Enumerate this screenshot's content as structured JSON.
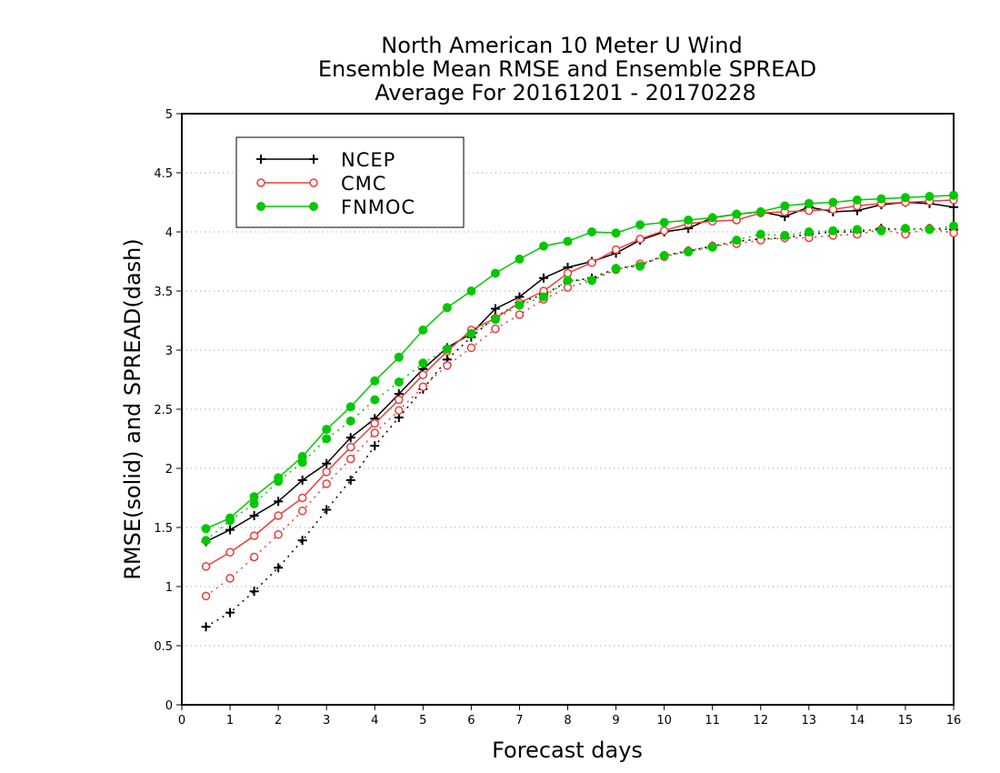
{
  "chart_data": {
    "type": "line",
    "title_lines": [
      "North American 10 Meter U Wind",
      "Ensemble Mean RMSE and Ensemble SPREAD",
      "Average For 20161201 - 20170228"
    ],
    "xlabel": "Forecast days",
    "ylabel": "RMSE(solid) and SPREAD(dash)",
    "xlim": [
      0,
      16
    ],
    "ylim": [
      0,
      5
    ],
    "x_ticks": [
      0,
      1,
      2,
      3,
      4,
      5,
      6,
      7,
      8,
      9,
      10,
      11,
      12,
      13,
      14,
      15,
      16
    ],
    "y_ticks": [
      0,
      0.5,
      1,
      1.5,
      2,
      2.5,
      3,
      3.5,
      4,
      4.5,
      5
    ],
    "grid": "horizontal dotted",
    "legend_position": "top-left",
    "x": [
      0.5,
      1,
      1.5,
      2,
      2.5,
      3,
      3.5,
      4,
      4.5,
      5,
      5.5,
      6,
      6.5,
      7,
      7.5,
      8,
      8.5,
      9,
      9.5,
      10,
      10.5,
      11,
      11.5,
      12,
      12.5,
      13,
      13.5,
      14,
      14.5,
      15,
      15.5,
      16
    ],
    "series": [
      {
        "name": "NCEP",
        "color": "#000000",
        "marker": "plus",
        "rmse": [
          1.38,
          1.48,
          1.6,
          1.72,
          1.9,
          2.04,
          2.26,
          2.42,
          2.63,
          2.84,
          3.02,
          3.14,
          3.35,
          3.45,
          3.61,
          3.7,
          3.75,
          3.82,
          3.93,
          4.0,
          4.03,
          4.12,
          4.15,
          4.17,
          4.13,
          4.21,
          4.17,
          4.18,
          4.23,
          4.25,
          4.24,
          4.21
        ],
        "spread": [
          0.66,
          0.78,
          0.96,
          1.16,
          1.39,
          1.65,
          1.9,
          2.19,
          2.43,
          2.67,
          2.92,
          3.11,
          3.28,
          3.4,
          3.47,
          3.58,
          3.61,
          3.69,
          3.72,
          3.8,
          3.84,
          3.88,
          3.92,
          3.94,
          3.95,
          3.98,
          4.0,
          4.0,
          4.03,
          4.02,
          4.03,
          4.02
        ]
      },
      {
        "name": "CMC",
        "color": "#ee3b3b",
        "marker": "open-circle",
        "rmse": [
          1.17,
          1.29,
          1.43,
          1.6,
          1.75,
          1.97,
          2.18,
          2.38,
          2.58,
          2.79,
          2.99,
          3.17,
          3.27,
          3.4,
          3.5,
          3.65,
          3.74,
          3.85,
          3.94,
          4.01,
          4.07,
          4.09,
          4.1,
          4.16,
          4.17,
          4.18,
          4.19,
          4.22,
          4.24,
          4.25,
          4.26,
          4.27
        ],
        "spread": [
          0.92,
          1.07,
          1.25,
          1.44,
          1.64,
          1.87,
          2.08,
          2.3,
          2.49,
          2.69,
          2.87,
          3.02,
          3.18,
          3.3,
          3.43,
          3.53,
          3.59,
          3.68,
          3.73,
          3.79,
          3.84,
          3.88,
          3.9,
          3.93,
          3.95,
          3.95,
          3.97,
          3.98,
          4.02,
          3.98,
          4.03,
          3.99
        ]
      },
      {
        "name": "FNMOC",
        "color": "#00c800",
        "marker": "filled-circle",
        "rmse": [
          1.49,
          1.58,
          1.76,
          1.92,
          2.1,
          2.33,
          2.52,
          2.74,
          2.94,
          3.17,
          3.36,
          3.5,
          3.65,
          3.77,
          3.88,
          3.92,
          4.0,
          3.99,
          4.06,
          4.08,
          4.1,
          4.12,
          4.15,
          4.17,
          4.22,
          4.24,
          4.25,
          4.27,
          4.28,
          4.29,
          4.3,
          4.31
        ],
        "spread": [
          1.39,
          1.56,
          1.7,
          1.89,
          2.05,
          2.25,
          2.4,
          2.58,
          2.73,
          2.89,
          3.01,
          3.14,
          3.26,
          3.38,
          3.45,
          3.59,
          3.59,
          3.69,
          3.71,
          3.8,
          3.83,
          3.87,
          3.93,
          3.98,
          3.97,
          4.0,
          4.01,
          4.02,
          4.01,
          4.03,
          4.02,
          4.05
        ]
      }
    ]
  }
}
